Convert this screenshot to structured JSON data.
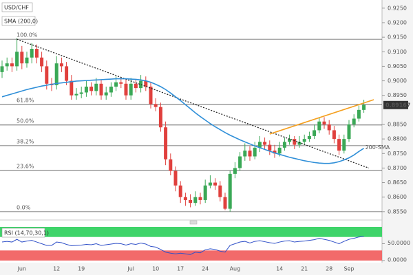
{
  "chart_data": [
    {
      "type": "candlestick",
      "title": "USD/CHF",
      "indicator": "SMA (200,0)",
      "categories": [
        null,
        null,
        null,
        null,
        "Jun",
        null,
        null,
        null,
        null,
        null,
        null,
        "12",
        null,
        null,
        null,
        null,
        "19",
        null,
        null,
        null,
        null,
        null,
        null,
        null,
        null,
        null,
        "Jul",
        null,
        null,
        null,
        null,
        "10",
        null,
        null,
        null,
        null,
        "17",
        null,
        null,
        null,
        null,
        "24",
        null,
        null,
        null,
        null,
        null,
        "Aug",
        null,
        null,
        null,
        null,
        null,
        null,
        null,
        null,
        "14",
        null,
        null,
        null,
        null,
        "21",
        null,
        null,
        null,
        null,
        "28",
        null,
        null,
        null,
        "Sep",
        null,
        null,
        null
      ],
      "open": [
        0.903,
        0.905,
        0.906,
        0.905,
        0.91,
        0.906,
        0.908,
        0.911,
        0.908,
        0.905,
        0.899,
        0.8985,
        0.906,
        0.905,
        0.9,
        0.895,
        0.8955,
        0.896,
        0.898,
        0.8965,
        0.899,
        0.895,
        0.896,
        0.898,
        0.8995,
        0.899,
        0.895,
        0.899,
        0.8975,
        0.9,
        0.898,
        0.892,
        0.891,
        0.884,
        0.873,
        0.869,
        0.864,
        0.86,
        0.859,
        0.858,
        0.86,
        0.859,
        0.864,
        0.865,
        0.864,
        0.86,
        0.856,
        0.868,
        0.87,
        0.874,
        0.876,
        0.874,
        0.877,
        0.879,
        0.878,
        0.876,
        0.875,
        0.877,
        0.879,
        0.88,
        0.878,
        0.879,
        0.88,
        0.881,
        0.883,
        0.886,
        0.885,
        0.883,
        0.88,
        0.876,
        0.88,
        0.885,
        0.887,
        0.89
      ],
      "high": [
        0.907,
        0.908,
        0.908,
        0.9147,
        0.912,
        0.91,
        0.913,
        0.9125,
        0.91,
        0.907,
        0.901,
        0.9085,
        0.908,
        0.9065,
        0.902,
        0.8975,
        0.898,
        0.9,
        0.8995,
        0.901,
        0.9005,
        0.898,
        0.8995,
        0.9015,
        0.901,
        0.9005,
        0.901,
        0.9005,
        0.902,
        0.9015,
        0.8995,
        0.894,
        0.8925,
        0.886,
        0.875,
        0.8705,
        0.8655,
        0.8615,
        0.861,
        0.862,
        0.8615,
        0.866,
        0.8675,
        0.8665,
        0.8655,
        0.8615,
        0.869,
        0.872,
        0.8755,
        0.8785,
        0.8775,
        0.879,
        0.881,
        0.8805,
        0.8795,
        0.878,
        0.879,
        0.8805,
        0.8815,
        0.881,
        0.881,
        0.8815,
        0.8825,
        0.885,
        0.8875,
        0.8875,
        0.8865,
        0.8845,
        0.8815,
        0.8815,
        0.8865,
        0.8885,
        0.8915,
        0.8935
      ],
      "low": [
        0.901,
        0.9035,
        0.903,
        0.9035,
        0.904,
        0.9045,
        0.906,
        0.906,
        0.903,
        0.897,
        0.8965,
        0.897,
        0.903,
        0.8985,
        0.8935,
        0.8935,
        0.894,
        0.8945,
        0.895,
        0.895,
        0.8935,
        0.8935,
        0.8945,
        0.8965,
        0.8975,
        0.8935,
        0.8935,
        0.896,
        0.896,
        0.8965,
        0.8905,
        0.8895,
        0.8825,
        0.871,
        0.8675,
        0.862,
        0.858,
        0.857,
        0.8565,
        0.857,
        0.8575,
        0.858,
        0.863,
        0.8625,
        0.8585,
        0.8555,
        0.855,
        0.8665,
        0.869,
        0.8725,
        0.8725,
        0.873,
        0.8755,
        0.8765,
        0.8745,
        0.8735,
        0.874,
        0.876,
        0.878,
        0.8765,
        0.877,
        0.878,
        0.879,
        0.88,
        0.882,
        0.8835,
        0.8815,
        0.8785,
        0.8745,
        0.875,
        0.879,
        0.884,
        0.886,
        0.889
      ],
      "close": [
        0.905,
        0.906,
        0.905,
        0.91,
        0.906,
        0.908,
        0.911,
        0.908,
        0.905,
        0.899,
        0.8985,
        0.906,
        0.905,
        0.9,
        0.895,
        0.8955,
        0.896,
        0.898,
        0.8965,
        0.899,
        0.895,
        0.896,
        0.898,
        0.8995,
        0.899,
        0.895,
        0.899,
        0.8975,
        0.9,
        0.898,
        0.892,
        0.891,
        0.884,
        0.873,
        0.869,
        0.864,
        0.86,
        0.859,
        0.858,
        0.86,
        0.859,
        0.864,
        0.865,
        0.864,
        0.86,
        0.856,
        0.868,
        0.87,
        0.874,
        0.876,
        0.874,
        0.877,
        0.879,
        0.878,
        0.876,
        0.875,
        0.877,
        0.879,
        0.88,
        0.878,
        0.879,
        0.88,
        0.881,
        0.883,
        0.886,
        0.885,
        0.883,
        0.88,
        0.876,
        0.88,
        0.885,
        0.887,
        0.89,
        0.8917
      ],
      "up_color": "#3aa856",
      "down_color": "#e0403d",
      "sma": {
        "name": "200-SMA",
        "color": "#2f8fd8",
        "values": [
          0.8945,
          0.895,
          0.8955,
          0.896,
          0.8965,
          0.897,
          0.8974,
          0.8978,
          0.8982,
          0.8985,
          0.8988,
          0.8991,
          0.8993,
          0.8995,
          0.8997,
          0.8999,
          0.9,
          0.9001,
          0.9002,
          0.9003,
          0.9004,
          0.9005,
          0.9006,
          0.9007,
          0.9007,
          0.9007,
          0.9006,
          0.9005,
          0.9003,
          0.9,
          0.8995,
          0.8988,
          0.898,
          0.897,
          0.8958,
          0.8945,
          0.8932,
          0.8918,
          0.8904,
          0.889,
          0.8877,
          0.8865,
          0.8853,
          0.8842,
          0.8832,
          0.8822,
          0.8813,
          0.8805,
          0.8797,
          0.879,
          0.8783,
          0.8776,
          0.877,
          0.8764,
          0.8758,
          0.8752,
          0.8747,
          0.8742,
          0.8737,
          0.8733,
          0.8729,
          0.8725,
          0.8722,
          0.8719,
          0.8717,
          0.8716,
          0.8716,
          0.8718,
          0.8722,
          0.8728,
          0.8735,
          0.8745,
          0.8757,
          0.8768
        ]
      },
      "trendlines": [
        {
          "color": "#222222",
          "points": [
            [
              3,
              0.9143
            ],
            [
              74,
              0.87
            ]
          ]
        },
        {
          "color": "#f5a020",
          "points": [
            [
              54,
              0.8817
            ],
            [
              75,
              0.8935
            ]
          ]
        }
      ],
      "fib_levels": [
        {
          "label": "100.0%",
          "value": 0.9143
        },
        {
          "label": "61.8%",
          "value": 0.8919
        },
        {
          "label": "50.0%",
          "value": 0.8848
        },
        {
          "label": "38.2%",
          "value": 0.8777
        },
        {
          "label": "23.6%",
          "value": 0.8692
        },
        {
          "label": "0.0%",
          "value": 0.855
        }
      ],
      "last_price": {
        "value": 0.89167,
        "label": "0.89167"
      },
      "ylim": [
        0.8526,
        0.9278
      ],
      "yticks": [
        {
          "value": 0.925,
          "label": "0.9250"
        },
        {
          "value": 0.92,
          "label": "0.9200"
        },
        {
          "value": 0.915,
          "label": "0.9150"
        },
        {
          "value": 0.91,
          "label": "0.9100"
        },
        {
          "value": 0.905,
          "label": "0.9050"
        },
        {
          "value": 0.9,
          "label": "0.9000"
        },
        {
          "value": 0.895,
          "label": "0.8950"
        },
        {
          "value": 0.885,
          "label": "0.8850"
        },
        {
          "value": 0.88,
          "label": "0.8800"
        },
        {
          "value": 0.875,
          "label": "0.8750"
        },
        {
          "value": 0.87,
          "label": "0.8700"
        },
        {
          "value": 0.865,
          "label": "0.8650"
        },
        {
          "value": 0.86,
          "label": "0.8600"
        },
        {
          "value": 0.855,
          "label": "0.8550"
        }
      ]
    },
    {
      "type": "line",
      "title": "RSI (14,70,30,1)",
      "color": "#3050c8",
      "values": [
        55,
        57,
        55,
        63,
        55,
        58,
        60,
        55,
        50,
        45,
        45,
        55,
        53,
        48,
        44,
        45,
        46,
        48,
        47,
        50,
        45,
        47,
        49,
        51,
        50,
        46,
        50,
        48,
        52,
        49,
        42,
        40,
        33,
        25,
        22,
        20,
        22,
        20,
        18,
        25,
        23,
        32,
        35,
        33,
        28,
        25,
        45,
        50,
        55,
        57,
        52,
        57,
        59,
        56,
        53,
        51,
        55,
        58,
        59,
        55,
        57,
        58,
        60,
        62,
        66,
        63,
        60,
        55,
        50,
        57,
        63,
        66,
        70,
        72
      ],
      "overbought": [
        70,
        100
      ],
      "overbought_color": "#3fd46a",
      "oversold": [
        0,
        30
      ],
      "oversold_color": "#f26a6a",
      "ylim": [
        0,
        100
      ],
      "yticks": [
        {
          "value": 50,
          "label": "50.0000"
        },
        {
          "value": 0,
          "label": "0.0000"
        }
      ]
    }
  ]
}
